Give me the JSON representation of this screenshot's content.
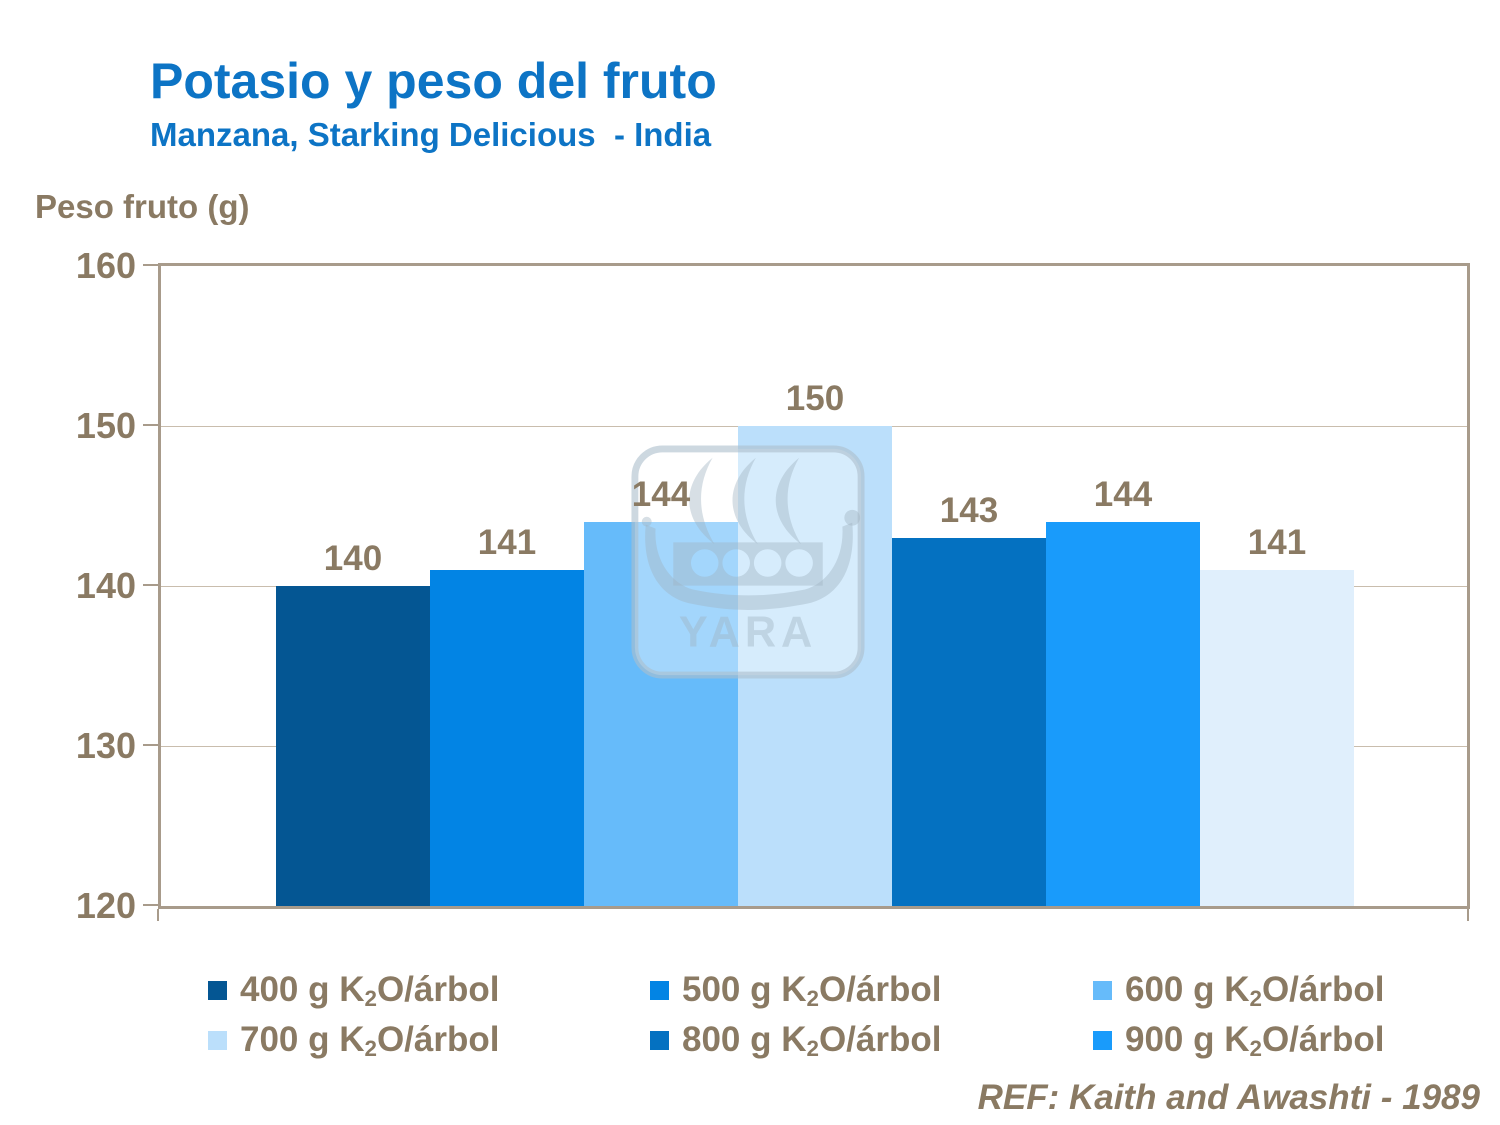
{
  "header": {
    "title": "Potasio y peso del fruto",
    "subtitle": "Manzana, Starking Delicious  - India"
  },
  "axis": {
    "title": "Peso fruto (g)",
    "yticks": [
      "160",
      "150",
      "140",
      "130",
      "120"
    ]
  },
  "chart_data": {
    "type": "bar",
    "title": "Potasio y peso del fruto",
    "subtitle": "Manzana, Starking Delicious - India",
    "ylabel": "Peso fruto (g)",
    "ylim": [
      120,
      160
    ],
    "ytick_interval": 10,
    "grid": true,
    "legend_position": "bottom",
    "categories": [
      "400 g K2O/árbol",
      "500 g K2O/árbol",
      "600 g K2O/árbol",
      "700 g K2O/árbol",
      "800 g K2O/árbol",
      "900 g K2O/árbol",
      ""
    ],
    "values": [
      140,
      141,
      144,
      150,
      143,
      144,
      141
    ],
    "bar_colors": [
      "#045693",
      "#0284E4",
      "#66BBFA",
      "#BBDFFB",
      "#0471C1",
      "#199BFB",
      "#E0EFFC"
    ]
  },
  "legend": {
    "entries": [
      {
        "pre": "400 g K",
        "sub": "2",
        "post": "O/árbol",
        "color": "#045693"
      },
      {
        "pre": "500 g K",
        "sub": "2",
        "post": "O/árbol",
        "color": "#0284E4"
      },
      {
        "pre": "600 g K",
        "sub": "2",
        "post": "O/árbol",
        "color": "#66BBFA"
      },
      {
        "pre": "700 g K",
        "sub": "2",
        "post": "O/árbol",
        "color": "#BBDFFB"
      },
      {
        "pre": "800 g K",
        "sub": "2",
        "post": "O/árbol",
        "color": "#0471C1"
      },
      {
        "pre": "900 g K",
        "sub": "2",
        "post": "O/árbol",
        "color": "#199BFB"
      }
    ]
  },
  "watermark": {
    "text": "YARA"
  },
  "footer": {
    "reference": "REF: Kaith and Awashti - 1989"
  },
  "colors": {
    "title_blue": "#0D74C5",
    "text_brown": "#8A7A63",
    "plot_border": "#A89B8B",
    "gridline": "#C9BDAD",
    "background": "#FFFFFF"
  }
}
